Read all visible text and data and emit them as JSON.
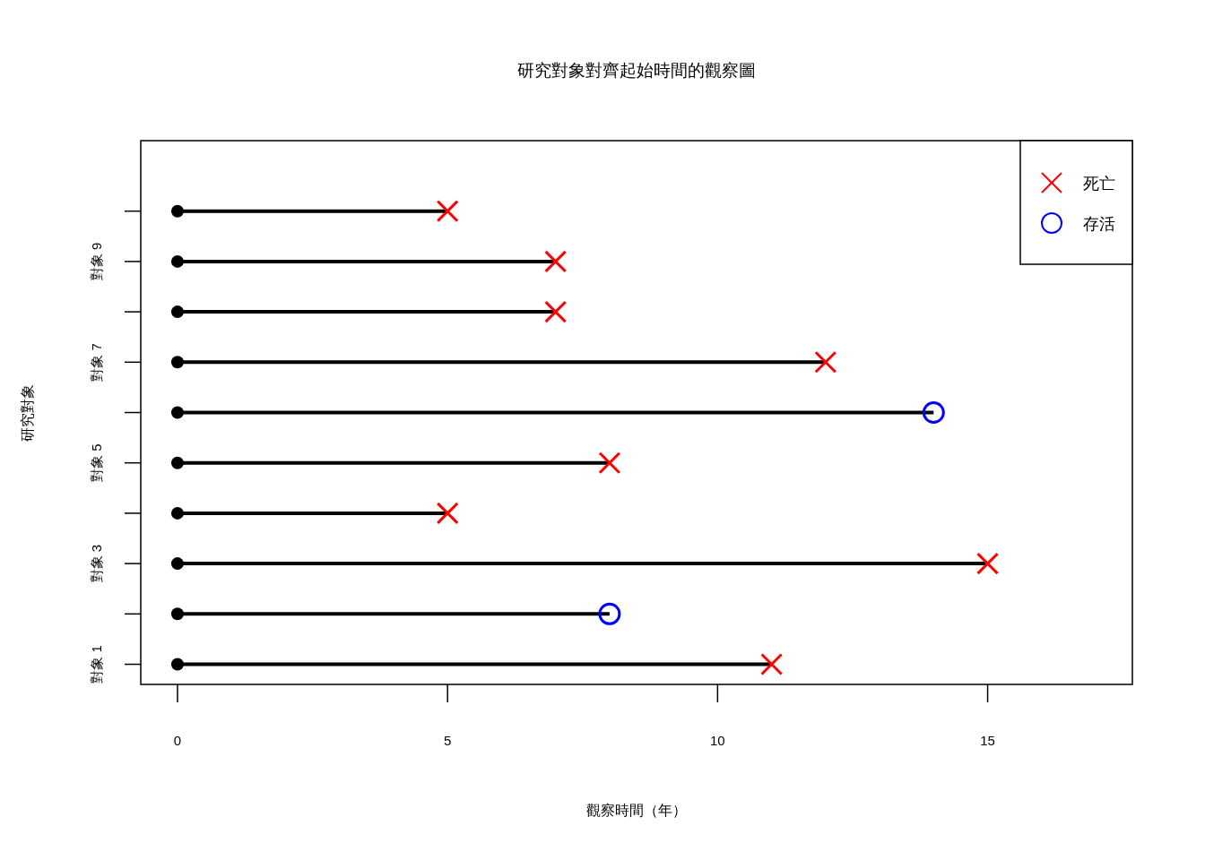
{
  "chart_data": {
    "type": "lollipop",
    "title": "研究對象對齊起始時間的觀察圖",
    "xlabel": "觀察時間（年）",
    "ylabel": "研究對象",
    "orientation": "horizontal",
    "categories": [
      null,
      "對象 9",
      null,
      "對象 7",
      null,
      "對象 5",
      null,
      "對象 3",
      null,
      "對象 1"
    ],
    "color": "#000000",
    "series": [
      {
        "name": "死亡",
        "color": "#ff0000",
        "marker": "cross",
        "values": [
          5,
          7,
          7,
          12,
          null,
          8,
          5,
          15,
          null,
          11
        ]
      },
      {
        "name": "存活",
        "color": "#0000ff",
        "marker": "circle",
        "values": [
          null,
          null,
          null,
          null,
          14,
          null,
          null,
          null,
          8,
          null
        ]
      }
    ],
    "xlim": [
      -0.68,
      17.68
    ],
    "xticks": [
      0,
      5,
      10,
      15
    ],
    "legend": "top right"
  }
}
